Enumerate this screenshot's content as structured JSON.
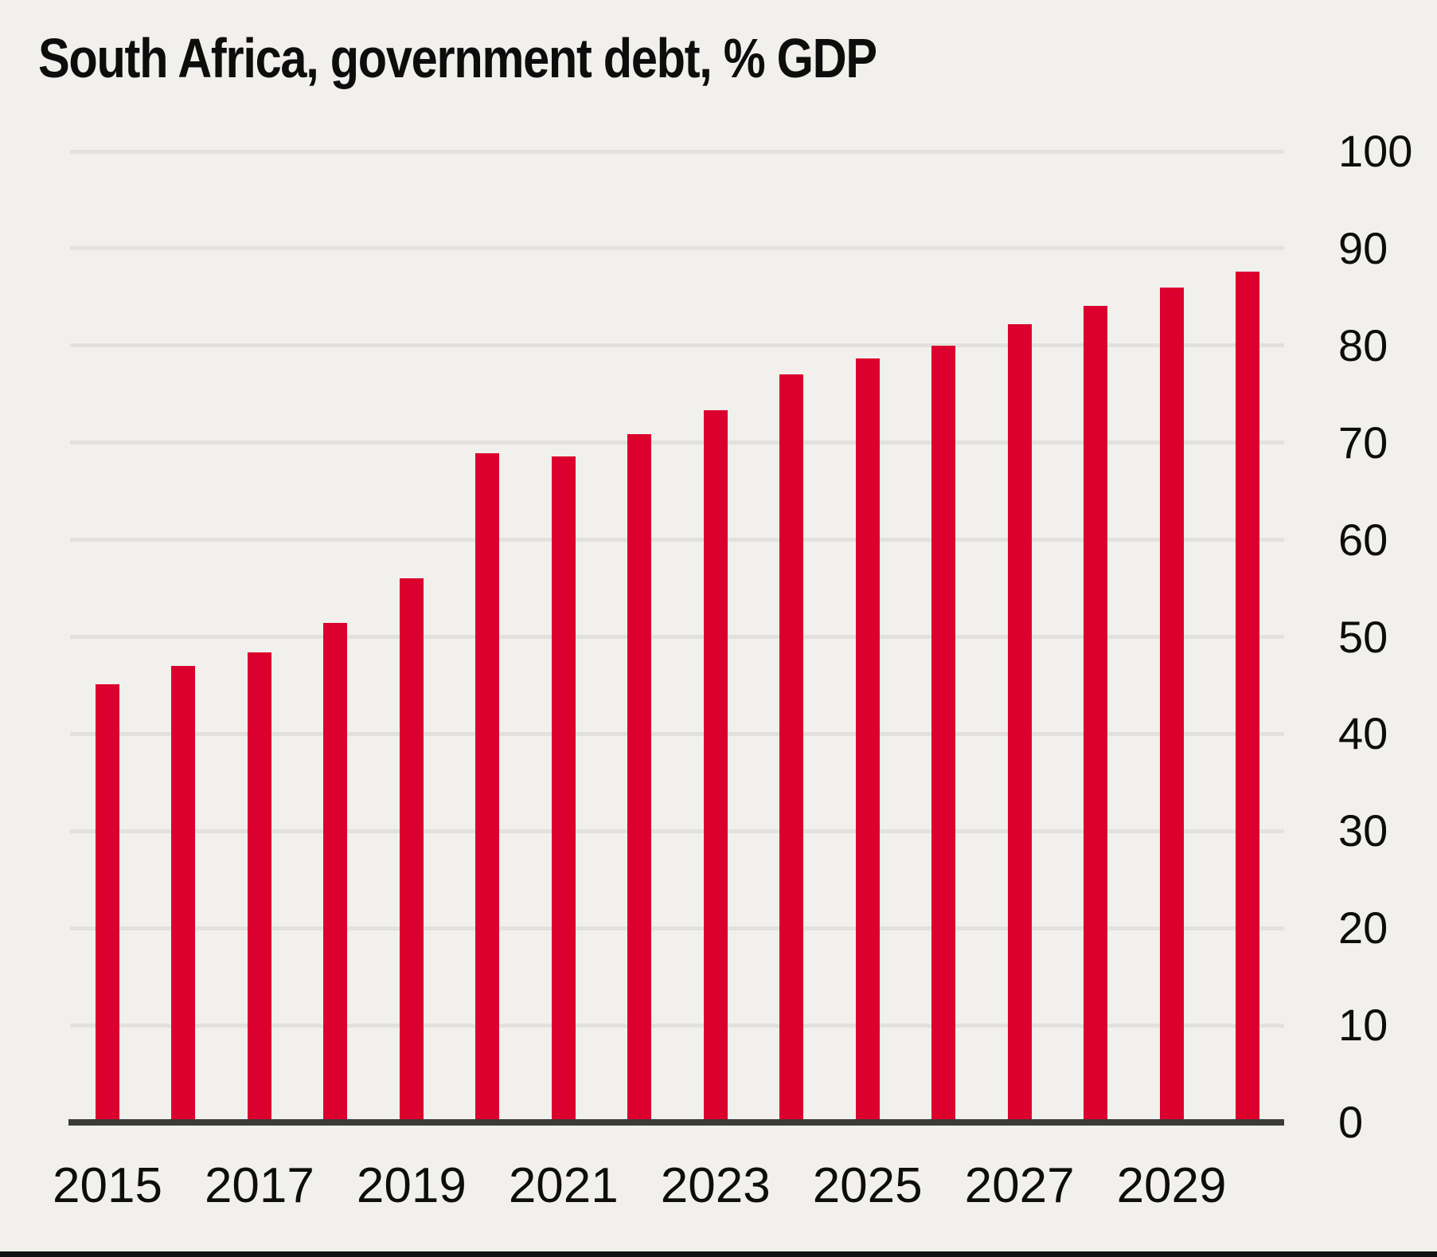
{
  "chart_data": {
    "type": "bar",
    "title": "South Africa, government debt, % GDP",
    "categories": [
      "2015",
      "2016",
      "2017",
      "2018",
      "2019",
      "2020",
      "2021",
      "2022",
      "2023",
      "2024",
      "2025",
      "2026",
      "2027",
      "2028",
      "2029",
      "2030"
    ],
    "values": [
      45.1,
      47.0,
      48.4,
      51.4,
      56.0,
      68.9,
      68.6,
      70.9,
      73.3,
      77.0,
      78.7,
      80.0,
      82.2,
      84.1,
      86.0,
      87.6
    ],
    "xlabel": "",
    "ylabel": "",
    "ylim": [
      0,
      100
    ],
    "ytick_step": 10,
    "ytick_labels": [
      "0",
      "10",
      "20",
      "30",
      "40",
      "50",
      "60",
      "70",
      "80",
      "90",
      "100"
    ],
    "yaxis_side": "right",
    "xtick_labels": [
      "2015",
      "2017",
      "2019",
      "2021",
      "2023",
      "2025",
      "2027",
      "2029"
    ],
    "grid": "horizontal",
    "legend": "none",
    "colors": {
      "bar": "#DB002D",
      "background": "#F1F0ED",
      "gridline": "#E3E1DE",
      "axis_line": "#3B3B39",
      "text": "#0D0D0D",
      "bottom_rule": "#111111"
    }
  }
}
